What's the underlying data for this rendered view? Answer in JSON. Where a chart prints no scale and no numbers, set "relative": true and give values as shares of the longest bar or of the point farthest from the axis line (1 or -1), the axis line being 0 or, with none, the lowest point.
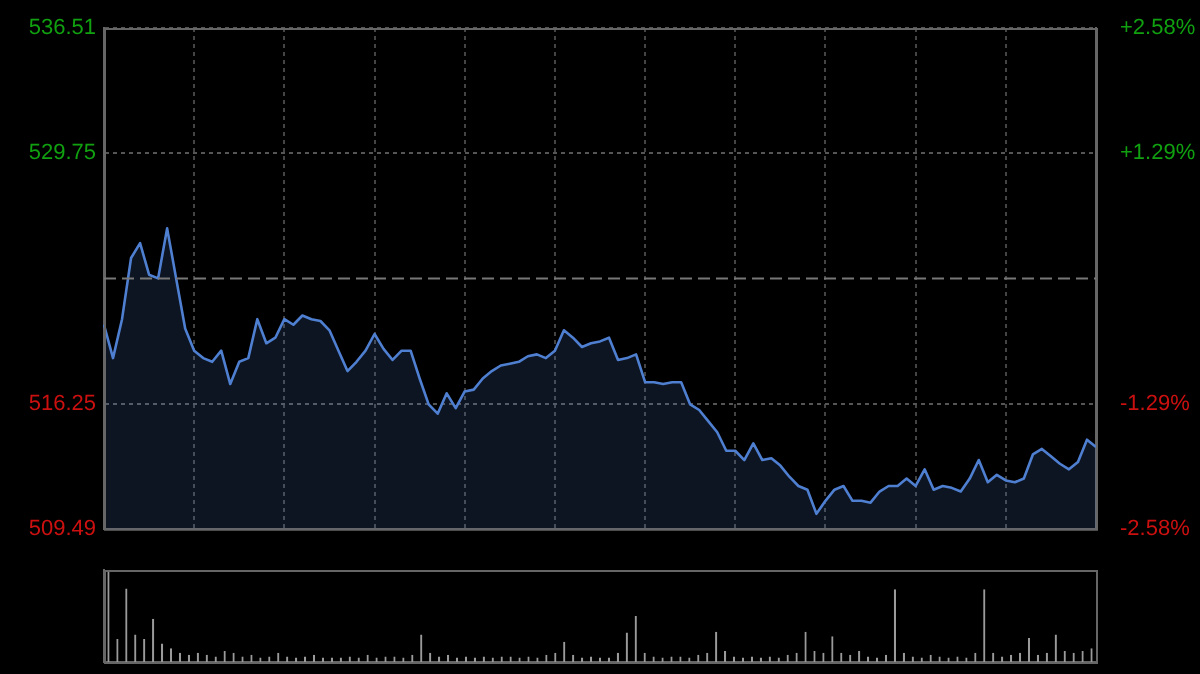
{
  "chart_data": [
    {
      "type": "area",
      "categories": [
        null,
        null,
        null,
        null,
        null,
        null,
        null,
        null,
        null,
        null,
        null,
        null,
        null,
        null,
        null,
        null,
        null,
        null,
        null,
        null,
        null,
        null,
        null,
        null,
        null,
        null,
        null,
        null,
        null,
        null,
        null,
        null,
        null,
        null,
        null,
        null,
        null,
        null,
        null,
        null,
        null,
        null,
        null,
        null,
        null,
        null,
        null,
        null,
        null,
        null,
        null,
        null,
        null,
        null,
        null,
        null,
        null,
        null,
        null,
        null,
        null,
        null,
        null,
        null,
        null,
        null,
        null,
        null,
        null,
        null,
        null,
        null,
        null,
        null,
        null,
        null,
        null,
        null,
        null,
        null,
        null,
        null,
        null,
        null,
        null,
        null,
        null,
        null,
        null,
        null,
        null,
        null,
        null,
        null,
        null,
        null,
        null,
        null,
        null,
        null,
        null,
        null,
        null,
        null,
        null,
        null,
        null,
        null,
        null,
        null,
        null
      ],
      "values": [
        520.5,
        518.7,
        520.8,
        524.1,
        524.9,
        523.2,
        523.0,
        525.7,
        523.0,
        520.3,
        519.1,
        518.7,
        518.5,
        519.1,
        517.3,
        518.5,
        518.7,
        520.8,
        519.5,
        519.8,
        520.8,
        520.5,
        521.0,
        520.8,
        520.7,
        520.2,
        519.1,
        518.0,
        518.5,
        519.1,
        520.0,
        519.2,
        518.6,
        519.1,
        519.1,
        517.6,
        516.2,
        515.7,
        516.8,
        516.0,
        516.9,
        517.0,
        517.6,
        518.0,
        518.3,
        518.4,
        518.5,
        518.8,
        518.9,
        518.7,
        519.1,
        520.2,
        519.8,
        519.3,
        519.5,
        519.6,
        519.8,
        518.6,
        518.7,
        518.9,
        517.4,
        517.4,
        517.3,
        517.4,
        517.4,
        516.2,
        515.9,
        515.3,
        514.7,
        513.7,
        513.7,
        513.2,
        514.1,
        513.2,
        513.3,
        512.9,
        512.3,
        511.8,
        511.6,
        510.3,
        511.0,
        511.6,
        511.8,
        511.0,
        511.0,
        510.9,
        511.5,
        511.8,
        511.8,
        512.2,
        511.8,
        512.7,
        511.6,
        511.8,
        511.7,
        511.5,
        512.2,
        513.2,
        512.0,
        512.4,
        512.1,
        512.0,
        512.2,
        513.5,
        513.8,
        513.4,
        513.0,
        512.7,
        513.1,
        514.3,
        513.9
      ],
      "color": "#4f7fd0",
      "ylim": [
        509.49,
        536.51
      ],
      "yticks": [
        509.49,
        516.25,
        529.75,
        536.51
      ],
      "y2lim": [
        -2.58,
        2.58
      ],
      "y2ticks": [
        {
          "value": -2.58,
          "label": "-2.58%"
        },
        {
          "value": -1.29,
          "label": "-1.29%"
        },
        {
          "value": 1.29,
          "label": "+1.29%"
        },
        {
          "value": 2.58,
          "label": "+2.58%"
        }
      ],
      "ref_lines": [
        {
          "axis": "y",
          "value": 523.0,
          "line_style": "dashed"
        }
      ],
      "grid": true
    },
    {
      "type": "bar",
      "relative": true,
      "color": "#9a9a9a",
      "categories": [
        null,
        null,
        null,
        null,
        null,
        null,
        null,
        null,
        null,
        null,
        null,
        null,
        null,
        null,
        null,
        null,
        null,
        null,
        null,
        null,
        null,
        null,
        null,
        null,
        null,
        null,
        null,
        null,
        null,
        null,
        null,
        null,
        null,
        null,
        null,
        null,
        null,
        null,
        null,
        null,
        null,
        null,
        null,
        null,
        null,
        null,
        null,
        null,
        null,
        null,
        null,
        null,
        null,
        null,
        null,
        null,
        null,
        null,
        null,
        null,
        null,
        null,
        null,
        null,
        null,
        null,
        null,
        null,
        null,
        null,
        null,
        null,
        null,
        null,
        null,
        null,
        null,
        null,
        null,
        null,
        null,
        null,
        null,
        null,
        null,
        null,
        null,
        null,
        null,
        null,
        null,
        null,
        null,
        null,
        null,
        null,
        null,
        null,
        null,
        null,
        null,
        null,
        null,
        null,
        null,
        null,
        null,
        null,
        null,
        null,
        null
      ],
      "values": [
        1.0,
        0.25,
        0.8,
        0.3,
        0.25,
        0.47,
        0.2,
        0.15,
        0.1,
        0.08,
        0.1,
        0.08,
        0.06,
        0.12,
        0.1,
        0.06,
        0.08,
        0.05,
        0.06,
        0.1,
        0.06,
        0.05,
        0.06,
        0.08,
        0.05,
        0.05,
        0.05,
        0.06,
        0.05,
        0.08,
        0.05,
        0.06,
        0.06,
        0.05,
        0.08,
        0.3,
        0.1,
        0.06,
        0.08,
        0.05,
        0.06,
        0.05,
        0.06,
        0.05,
        0.06,
        0.06,
        0.05,
        0.06,
        0.05,
        0.08,
        0.1,
        0.22,
        0.08,
        0.05,
        0.06,
        0.05,
        0.05,
        0.1,
        0.32,
        0.5,
        0.1,
        0.06,
        0.05,
        0.06,
        0.06,
        0.05,
        0.08,
        0.1,
        0.33,
        0.12,
        0.06,
        0.05,
        0.06,
        0.05,
        0.06,
        0.05,
        0.08,
        0.1,
        0.33,
        0.12,
        0.1,
        0.28,
        0.1,
        0.08,
        0.12,
        0.06,
        0.05,
        0.08,
        0.79,
        0.1,
        0.06,
        0.05,
        0.08,
        0.06,
        0.05,
        0.06,
        0.05,
        0.1,
        0.79,
        0.1,
        0.06,
        0.08,
        0.1,
        0.26,
        0.08,
        0.1,
        0.3,
        0.12,
        0.1,
        0.12,
        0.15
      ]
    }
  ]
}
